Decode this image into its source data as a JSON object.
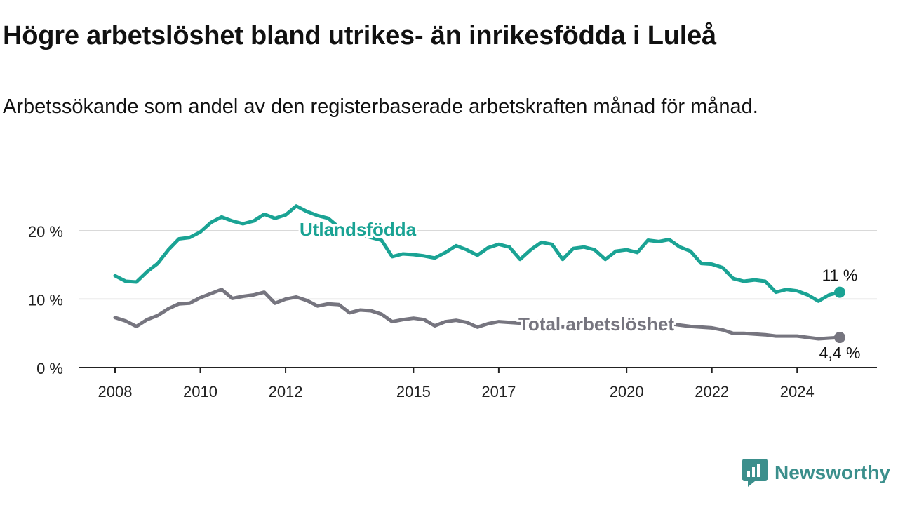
{
  "header": {
    "title": "Högre arbetslöshet bland utrikes- än inrikesfödda i Luleå",
    "subtitle": "Arbetssökande som andel av den registerbaserade arbetskraften månad för månad."
  },
  "brand": {
    "name": "Newsworthy",
    "color": "#3b8f8c"
  },
  "chart_data": {
    "type": "line",
    "title": "Högre arbetslöshet bland utrikes- än inrikesfödda i Luleå",
    "subtitle": "Arbetssökande som andel av den registerbaserade arbetskraften månad för månad.",
    "x_ticks": [
      "2008",
      "2010",
      "2012",
      "2015",
      "2017",
      "2020",
      "2022",
      "2024"
    ],
    "y_ticks": [
      "0 %",
      "10 %",
      "20 %"
    ],
    "y_tick_values": [
      0,
      10,
      20
    ],
    "xlim": [
      "2008-01",
      "2025-01"
    ],
    "ylim": [
      0,
      25
    ],
    "grid": true,
    "legend": "inline labels",
    "series": [
      {
        "name": "Utlandsfödda",
        "color": "#1aa394",
        "end_label": "11 %",
        "points": [
          [
            "2008-01",
            13.4
          ],
          [
            "2008-04",
            12.6
          ],
          [
            "2008-07",
            12.5
          ],
          [
            "2008-10",
            14.0
          ],
          [
            "2009-01",
            15.2
          ],
          [
            "2009-04",
            17.2
          ],
          [
            "2009-07",
            18.8
          ],
          [
            "2009-10",
            19.0
          ],
          [
            "2010-01",
            19.8
          ],
          [
            "2010-04",
            21.2
          ],
          [
            "2010-07",
            22.0
          ],
          [
            "2010-10",
            21.4
          ],
          [
            "2011-01",
            21.0
          ],
          [
            "2011-04",
            21.4
          ],
          [
            "2011-07",
            22.4
          ],
          [
            "2011-10",
            21.8
          ],
          [
            "2012-01",
            22.3
          ],
          [
            "2012-04",
            23.6
          ],
          [
            "2012-07",
            22.8
          ],
          [
            "2012-10",
            22.2
          ],
          [
            "2013-01",
            21.8
          ],
          [
            "2013-04",
            20.5
          ],
          [
            "2013-07",
            20.0
          ],
          [
            "2013-10",
            19.5
          ],
          [
            "2014-01",
            19.0
          ],
          [
            "2014-04",
            18.6
          ],
          [
            "2014-07",
            16.2
          ],
          [
            "2014-10",
            16.6
          ],
          [
            "2015-01",
            16.5
          ],
          [
            "2015-04",
            16.3
          ],
          [
            "2015-07",
            16.0
          ],
          [
            "2015-10",
            16.8
          ],
          [
            "2016-01",
            17.8
          ],
          [
            "2016-04",
            17.2
          ],
          [
            "2016-07",
            16.4
          ],
          [
            "2016-10",
            17.5
          ],
          [
            "2017-01",
            18.0
          ],
          [
            "2017-04",
            17.6
          ],
          [
            "2017-07",
            15.8
          ],
          [
            "2017-10",
            17.2
          ],
          [
            "2018-01",
            18.3
          ],
          [
            "2018-04",
            18.0
          ],
          [
            "2018-07",
            15.8
          ],
          [
            "2018-10",
            17.4
          ],
          [
            "2019-01",
            17.6
          ],
          [
            "2019-04",
            17.2
          ],
          [
            "2019-07",
            15.8
          ],
          [
            "2019-10",
            17.0
          ],
          [
            "2020-01",
            17.2
          ],
          [
            "2020-04",
            16.8
          ],
          [
            "2020-07",
            18.6
          ],
          [
            "2020-10",
            18.4
          ],
          [
            "2021-01",
            18.7
          ],
          [
            "2021-04",
            17.6
          ],
          [
            "2021-07",
            17.0
          ],
          [
            "2021-10",
            15.2
          ],
          [
            "2022-01",
            15.1
          ],
          [
            "2022-04",
            14.6
          ],
          [
            "2022-07",
            13.0
          ],
          [
            "2022-10",
            12.6
          ],
          [
            "2023-01",
            12.8
          ],
          [
            "2023-04",
            12.6
          ],
          [
            "2023-07",
            11.0
          ],
          [
            "2023-10",
            11.4
          ],
          [
            "2024-01",
            11.2
          ],
          [
            "2024-04",
            10.6
          ],
          [
            "2024-07",
            9.7
          ],
          [
            "2024-10",
            10.6
          ],
          [
            "2025-01",
            11.0
          ]
        ]
      },
      {
        "name": "Total arbetslöshet",
        "color": "#76757f",
        "end_label": "4,4 %",
        "points": [
          [
            "2008-01",
            7.3
          ],
          [
            "2008-04",
            6.8
          ],
          [
            "2008-07",
            6.0
          ],
          [
            "2008-10",
            7.0
          ],
          [
            "2009-01",
            7.6
          ],
          [
            "2009-04",
            8.6
          ],
          [
            "2009-07",
            9.3
          ],
          [
            "2009-10",
            9.4
          ],
          [
            "2010-01",
            10.2
          ],
          [
            "2010-04",
            10.8
          ],
          [
            "2010-07",
            11.4
          ],
          [
            "2010-10",
            10.1
          ],
          [
            "2011-01",
            10.4
          ],
          [
            "2011-04",
            10.6
          ],
          [
            "2011-07",
            11.0
          ],
          [
            "2011-10",
            9.4
          ],
          [
            "2012-01",
            10.0
          ],
          [
            "2012-04",
            10.3
          ],
          [
            "2012-07",
            9.8
          ],
          [
            "2012-10",
            9.0
          ],
          [
            "2013-01",
            9.3
          ],
          [
            "2013-04",
            9.2
          ],
          [
            "2013-07",
            8.0
          ],
          [
            "2013-10",
            8.4
          ],
          [
            "2014-01",
            8.3
          ],
          [
            "2014-04",
            7.8
          ],
          [
            "2014-07",
            6.7
          ],
          [
            "2014-10",
            7.0
          ],
          [
            "2015-01",
            7.2
          ],
          [
            "2015-04",
            7.0
          ],
          [
            "2015-07",
            6.1
          ],
          [
            "2015-10",
            6.7
          ],
          [
            "2016-01",
            6.9
          ],
          [
            "2016-04",
            6.6
          ],
          [
            "2016-07",
            5.9
          ],
          [
            "2016-10",
            6.4
          ],
          [
            "2017-01",
            6.7
          ],
          [
            "2017-04",
            6.6
          ],
          [
            "2017-07",
            6.5
          ],
          [
            "2017-10",
            6.6
          ],
          [
            "2018-01",
            6.9
          ],
          [
            "2018-04",
            6.5
          ],
          [
            "2018-07",
            5.9
          ],
          [
            "2018-10",
            6.3
          ],
          [
            "2019-01",
            6.5
          ],
          [
            "2019-04",
            6.3
          ],
          [
            "2019-07",
            5.8
          ],
          [
            "2019-10",
            6.2
          ],
          [
            "2020-01",
            6.4
          ],
          [
            "2020-04",
            6.5
          ],
          [
            "2020-07",
            6.6
          ],
          [
            "2020-10",
            6.3
          ],
          [
            "2021-01",
            6.4
          ],
          [
            "2021-04",
            6.2
          ],
          [
            "2021-07",
            6.0
          ],
          [
            "2021-10",
            5.9
          ],
          [
            "2022-01",
            5.8
          ],
          [
            "2022-04",
            5.5
          ],
          [
            "2022-07",
            5.0
          ],
          [
            "2022-10",
            5.0
          ],
          [
            "2023-01",
            4.9
          ],
          [
            "2023-04",
            4.8
          ],
          [
            "2023-07",
            4.6
          ],
          [
            "2023-10",
            4.6
          ],
          [
            "2024-01",
            4.6
          ],
          [
            "2024-04",
            4.4
          ],
          [
            "2024-07",
            4.2
          ],
          [
            "2024-10",
            4.3
          ],
          [
            "2025-01",
            4.4
          ]
        ]
      }
    ]
  }
}
